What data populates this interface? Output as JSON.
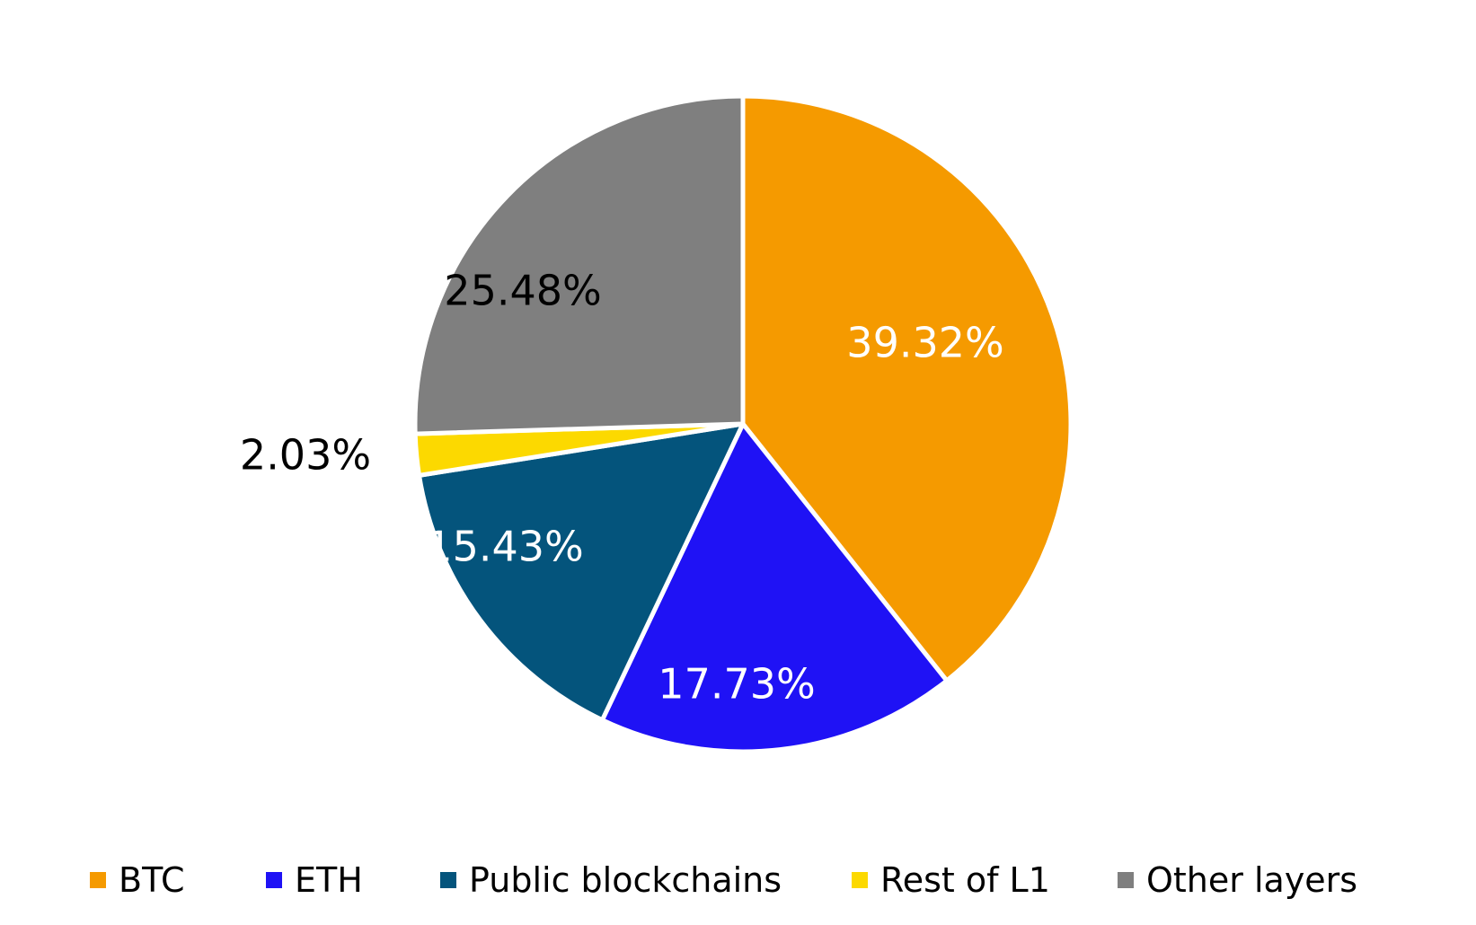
{
  "chart_data": {
    "type": "pie",
    "title": "",
    "start_angle": "12 o'clock",
    "direction": "clockwise",
    "legend_position": "bottom",
    "slices": [
      {
        "name": "BTC",
        "value": 39.32,
        "label": "39.32%",
        "color": "#F59A00",
        "label_color": "#FFFFFF"
      },
      {
        "name": "ETH",
        "value": 17.73,
        "label": "17.73%",
        "color": "#1F12F5",
        "label_color": "#FFFFFF"
      },
      {
        "name": "Public blockchains",
        "value": 15.43,
        "label": "15.43%",
        "color": "#04547C",
        "label_color": "#FFFFFF"
      },
      {
        "name": "Rest of L1",
        "value": 2.03,
        "label": "2.03%",
        "color": "#FCD900",
        "label_color": "#000000"
      },
      {
        "name": "Other layers",
        "value": 25.48,
        "label": "25.48%",
        "color": "#7F7F7F",
        "label_color": "#000000"
      }
    ]
  }
}
